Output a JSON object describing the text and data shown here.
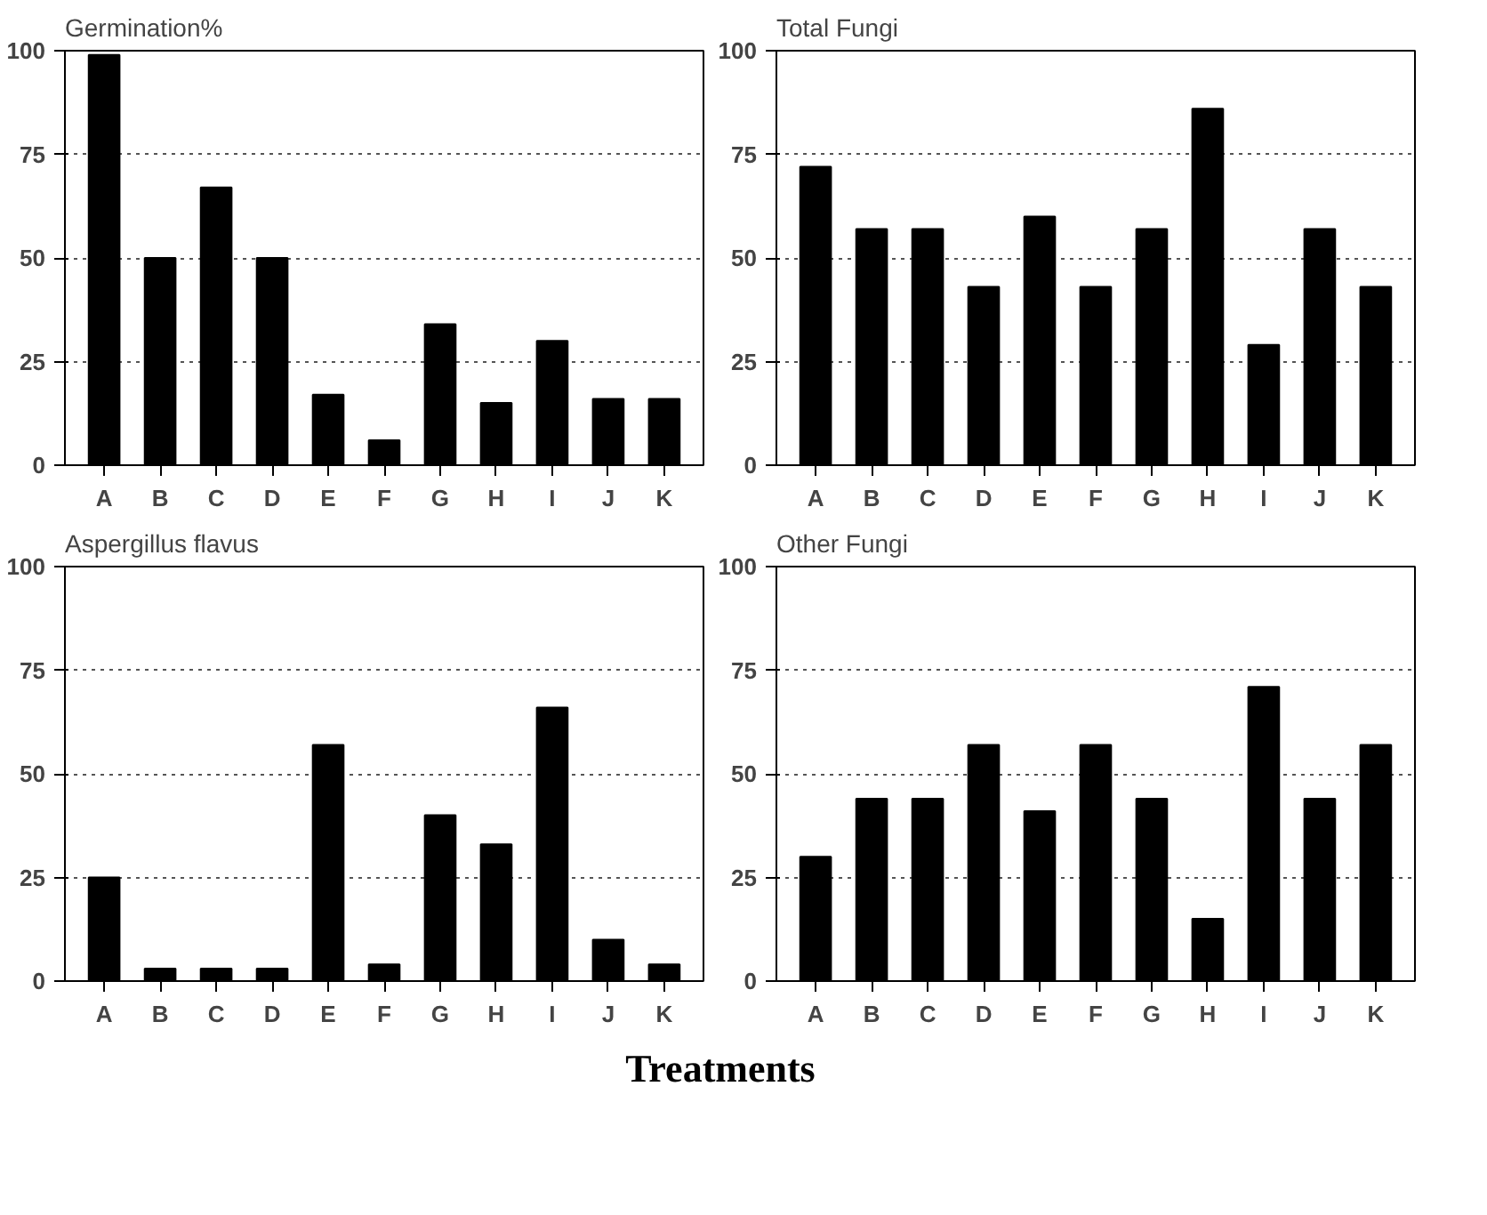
{
  "chart_data": [
    {
      "type": "bar",
      "title": "Germination%",
      "categories": [
        "A",
        "B",
        "C",
        "D",
        "E",
        "F",
        "G",
        "H",
        "I",
        "J",
        "K"
      ],
      "color": "#000000",
      "values": [
        99,
        50,
        67,
        50,
        17,
        6,
        34,
        15,
        30,
        16,
        16
      ],
      "ylim": [
        0,
        100
      ],
      "yticks": [
        0,
        25,
        50,
        75,
        100
      ],
      "grid": "y"
    },
    {
      "type": "bar",
      "title": "Total Fungi",
      "categories": [
        "A",
        "B",
        "C",
        "D",
        "E",
        "F",
        "G",
        "H",
        "I",
        "J",
        "K"
      ],
      "color": "#000000",
      "values": [
        72,
        57,
        57,
        43,
        60,
        43,
        57,
        86,
        29,
        57,
        43
      ],
      "ylim": [
        0,
        100
      ],
      "yticks": [
        0,
        25,
        50,
        75,
        100
      ],
      "grid": "y"
    },
    {
      "type": "bar",
      "title": "Aspergillus flavus",
      "categories": [
        "A",
        "B",
        "C",
        "D",
        "E",
        "F",
        "G",
        "H",
        "I",
        "J",
        "K"
      ],
      "color": "#000000",
      "values": [
        25,
        3,
        3,
        3,
        57,
        4,
        40,
        33,
        66,
        10,
        4
      ],
      "ylim": [
        0,
        100
      ],
      "yticks": [
        0,
        25,
        50,
        75,
        100
      ],
      "grid": "y"
    },
    {
      "type": "bar",
      "title": "Other Fungi",
      "xlabel": "Treatments",
      "categories": [
        "A",
        "B",
        "C",
        "D",
        "E",
        "F",
        "G",
        "H",
        "I",
        "J",
        "K"
      ],
      "color": "#000000",
      "values": [
        30,
        44,
        44,
        57,
        41,
        57,
        44,
        15,
        71,
        44,
        57
      ],
      "ylim": [
        0,
        100
      ],
      "yticks": [
        0,
        25,
        50,
        75,
        100
      ],
      "grid": "y"
    }
  ]
}
